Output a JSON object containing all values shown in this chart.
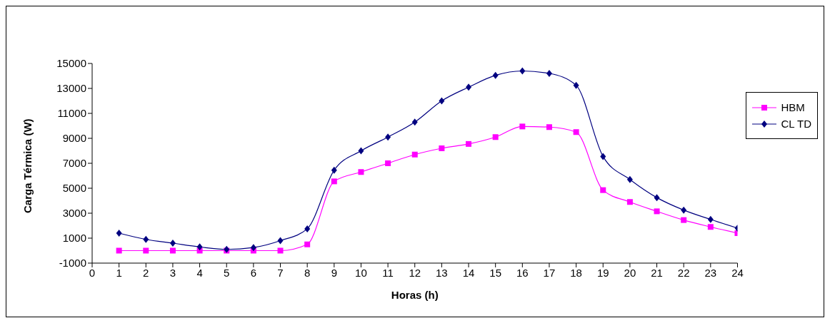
{
  "chart_data": {
    "type": "line",
    "xlabel": "Horas (h)",
    "ylabel": "Carga Térmica (W)",
    "x": [
      1,
      2,
      3,
      4,
      5,
      6,
      7,
      8,
      9,
      10,
      11,
      12,
      13,
      14,
      15,
      16,
      17,
      18,
      19,
      20,
      21,
      22,
      23,
      24
    ],
    "xlim": [
      0,
      24
    ],
    "xticks": [
      0,
      1,
      2,
      3,
      4,
      5,
      6,
      7,
      8,
      9,
      10,
      11,
      12,
      13,
      14,
      15,
      16,
      17,
      18,
      19,
      20,
      21,
      22,
      23,
      24
    ],
    "ylim": [
      -1000,
      15000
    ],
    "yticks": [
      -1000,
      1000,
      3000,
      5000,
      7000,
      9000,
      11000,
      13000,
      15000
    ],
    "legend": "right",
    "line_style": "solid",
    "series": [
      {
        "name": "HBM",
        "color": "#ff00ff",
        "marker": "square",
        "values": [
          0,
          0,
          0,
          0,
          0,
          0,
          0,
          500,
          5550,
          6300,
          7000,
          7700,
          8200,
          8550,
          9100,
          9950,
          9900,
          9500,
          4850,
          3900,
          3150,
          2450,
          1900,
          1400
        ]
      },
      {
        "name": "CL TD",
        "color": "#000080",
        "marker": "diamond",
        "values": [
          1400,
          900,
          600,
          300,
          100,
          250,
          800,
          1750,
          6450,
          8000,
          9100,
          10300,
          12000,
          13100,
          14050,
          14400,
          14200,
          13250,
          7550,
          5700,
          4250,
          3250,
          2500,
          1800
        ]
      }
    ]
  }
}
